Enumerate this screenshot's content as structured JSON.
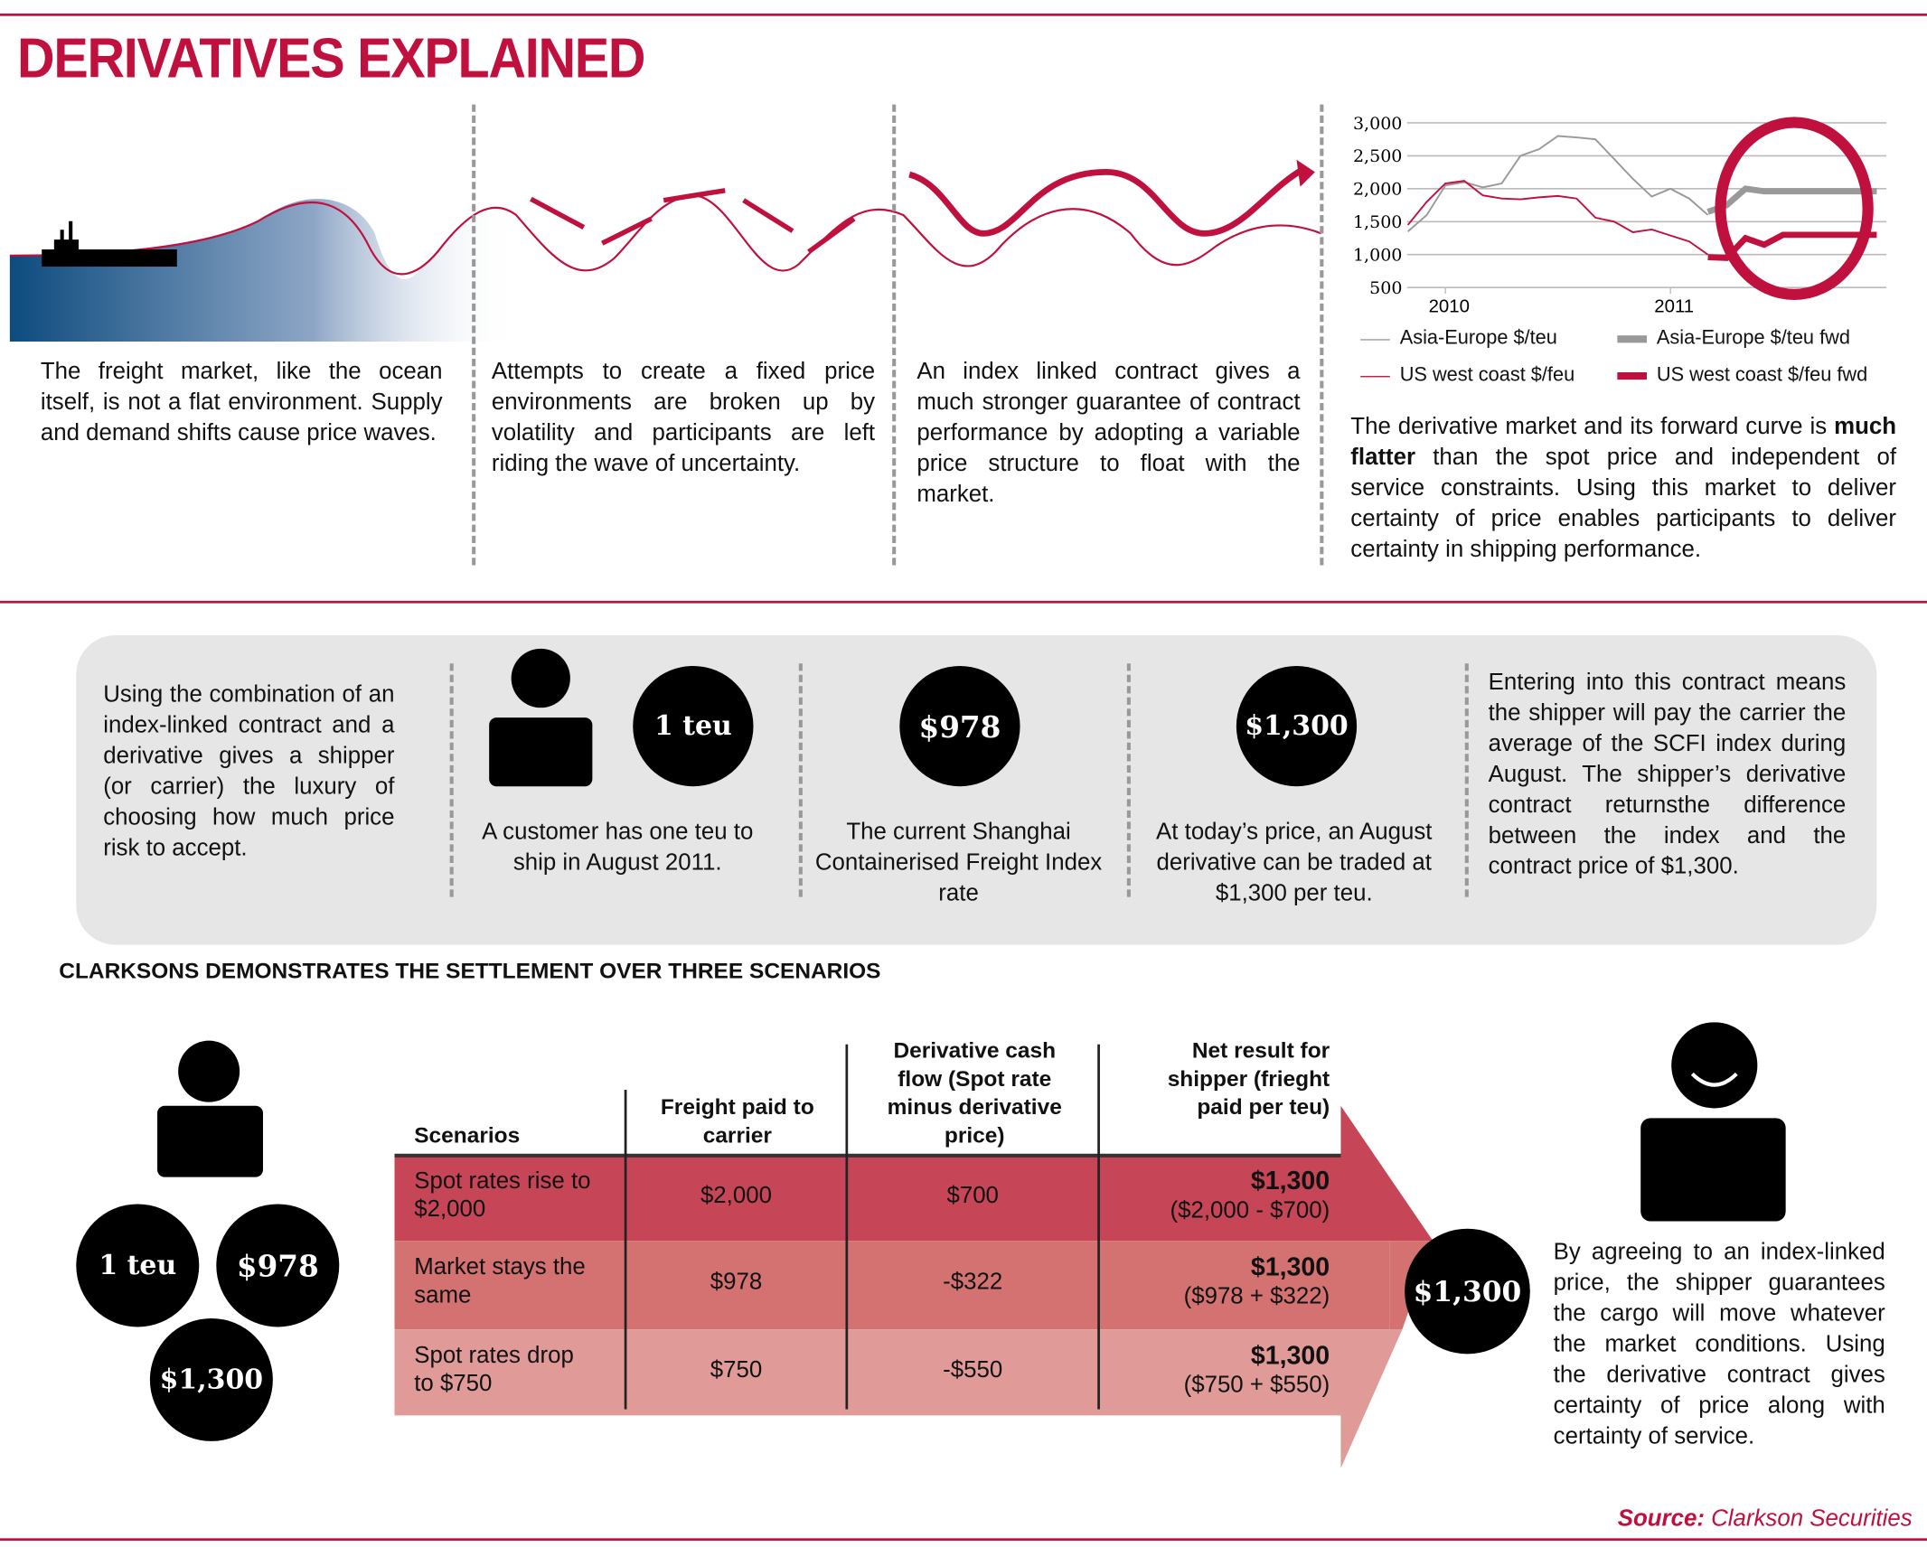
{
  "title": "DERIVATIVES EXPLAINED",
  "colors": {
    "accent": "#c0103e",
    "row1": "#c64657",
    "row2": "#d47272",
    "row3": "#e09a98",
    "panel": "#e6e6e6",
    "asia": "#999999"
  },
  "intro": [
    "The freight market, like the ocean itself, is not a flat environment. Supply and demand shifts cause price waves.",
    "Attempts to create a fixed price environments are broken up by volatility and participants are left riding the wave of uncertainty.",
    "An index linked contract gives a much stronger guarantee of contract performance by adopting a variable price structure to float with the market."
  ],
  "chart_text": {
    "pre": "The derivative market and its forward curve is ",
    "bold": "much flatter",
    "post": " than the spot price and independent of service constraints. Using this market to deliver certainty of price enables participants to deliver certainty in shipping performance."
  },
  "chart_data": {
    "type": "line",
    "y_ticks": [
      "3,000",
      "2,500",
      "2,000",
      "1,500",
      "1,000",
      "500"
    ],
    "ylim": [
      500,
      3000
    ],
    "x_ticks": [
      "2010",
      "2011"
    ],
    "grid": true,
    "legend_position": "bottom",
    "series": [
      {
        "name": "Asia-Europe $/teu",
        "style": "thin",
        "color": "#999999",
        "x": [
          "2009-11",
          "2009-12",
          "2010-01",
          "2010-02",
          "2010-03",
          "2010-04",
          "2010-05",
          "2010-06",
          "2010-07",
          "2010-08",
          "2010-09",
          "2010-10",
          "2010-11",
          "2010-12",
          "2011-01",
          "2011-02",
          "2011-03"
        ],
        "y": [
          1350,
          1600,
          2050,
          2100,
          2020,
          2080,
          2500,
          2600,
          2800,
          2780,
          2750,
          2450,
          2150,
          1880,
          2000,
          1850,
          1600
        ]
      },
      {
        "name": "US west coast $/feu",
        "style": "thin",
        "color": "#c0103e",
        "x": [
          "2009-11",
          "2009-12",
          "2010-01",
          "2010-02",
          "2010-03",
          "2010-04",
          "2010-05",
          "2010-06",
          "2010-07",
          "2010-08",
          "2010-09",
          "2010-10",
          "2010-11",
          "2010-12",
          "2011-01",
          "2011-02",
          "2011-03"
        ],
        "y": [
          1450,
          1800,
          2080,
          2120,
          1900,
          1850,
          1840,
          1870,
          1890,
          1850,
          1560,
          1500,
          1340,
          1380,
          1290,
          1200,
          1000
        ]
      },
      {
        "name": "Asia-Europe $/teu fwd",
        "style": "thick",
        "color": "#999999",
        "x": [
          "2011-03",
          "2011-04",
          "2011-05",
          "2011-06",
          "2011-07",
          "2011-08",
          "2011-09",
          "2011-10",
          "2011-11",
          "2011-12"
        ],
        "y": [
          1650,
          1750,
          2000,
          1960,
          1960,
          1960,
          1960,
          1960,
          1960,
          1960
        ]
      },
      {
        "name": "US west coast $/feu fwd",
        "style": "thick",
        "color": "#c0103e",
        "x": [
          "2011-03",
          "2011-04",
          "2011-05",
          "2011-06",
          "2011-07",
          "2011-08",
          "2011-09",
          "2011-10",
          "2011-11",
          "2011-12"
        ],
        "y": [
          960,
          950,
          1250,
          1150,
          1300,
          1300,
          1300,
          1300,
          1300,
          1300
        ]
      }
    ]
  },
  "panel": {
    "intro": "Using the combination of an index-linked contract and a derivative gives a shipper (or carrier) the luxury of choosing how much price risk to accept.",
    "teu_badge": "1 teu",
    "customer": "A customer has one teu to ship in August 2011.",
    "scfi_badge": "$978",
    "scfi": "The current Shanghai Containerised Freight Index rate",
    "deriv_badge": "$1,300",
    "deriv": "At today’s price, an August derivative can be traded at $1,300 per teu.",
    "contract": "Entering into this contract means the shipper will pay the carrier the average of the SCFI index during August. The shipper’s derivative contract returnsthe difference between the index and the contract price of $1,300."
  },
  "scenarios_heading": "CLARKSONS DEMONSTRATES THE SETTLEMENT OVER THREE SCENARIOS",
  "left_badges": {
    "teu": "1 teu",
    "scfi": "$978",
    "deriv": "$1,300"
  },
  "table": {
    "headers": [
      "Scenarios",
      "Freight paid to carrier",
      "Derivative cash flow (Spot rate minus derivative price)",
      "Net result for shipper (frieght paid per teu)"
    ],
    "rows": [
      {
        "scenario": "Spot rates rise to $2,000",
        "freight": "$2,000",
        "cash": "$700",
        "net": "$1,300",
        "calc": "($2,000 - $700)"
      },
      {
        "scenario": "Market stays the same",
        "freight": "$978",
        "cash": "-$322",
        "net": "$1,300",
        "calc": "($978 + $322)"
      },
      {
        "scenario": "Spot rates drop to $750",
        "freight": "$750",
        "cash": "-$550",
        "net": "$1,300",
        "calc": "($750 + $550)"
      }
    ]
  },
  "result_badge": "$1,300",
  "conclusion": "By agreeing to an index-linked price, the shipper guarantees the cargo will move whatever the market conditions. Using the derivative contract gives certainty of price along with certainty of service.",
  "source": {
    "label": "Source:",
    "value": "Clarkson Securities"
  }
}
